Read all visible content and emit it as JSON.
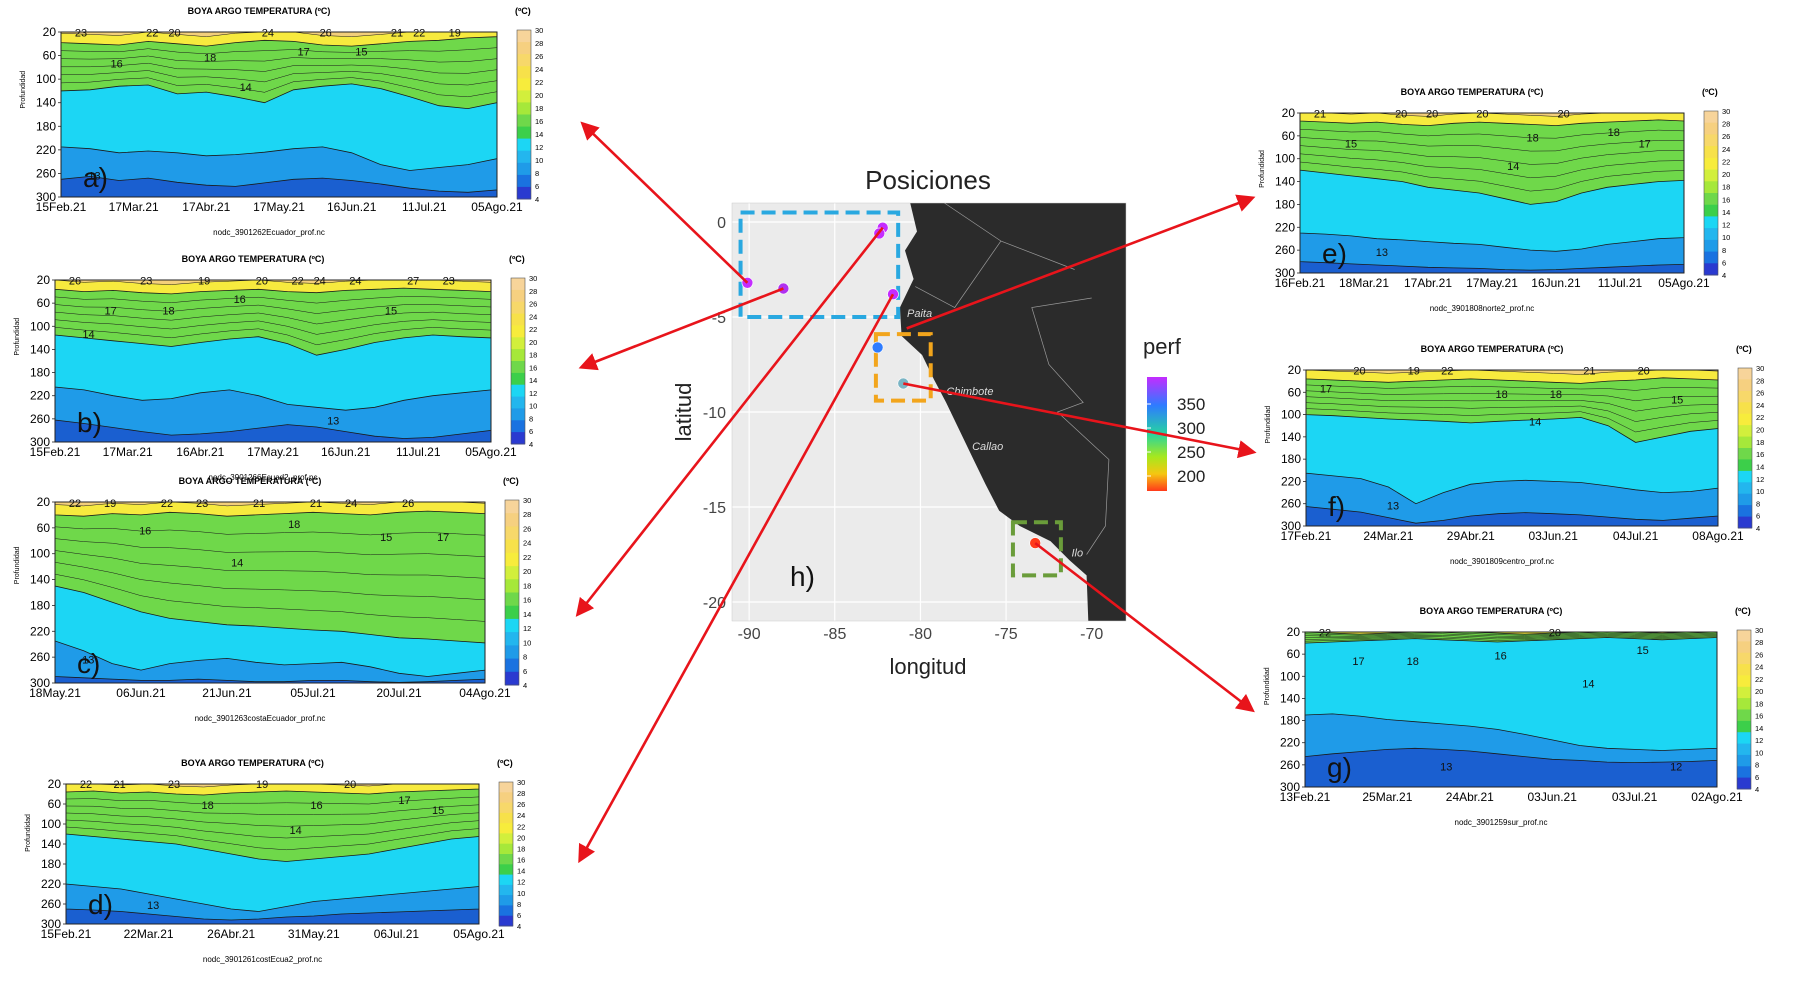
{
  "panels": [
    {
      "id": "a",
      "letter": "a)",
      "title": "BOYA ARGO TEMPERATURA (ºC)",
      "unit": "(ºC)",
      "ylabel": "Profundidad",
      "yticks": [
        "20",
        "60",
        "100",
        "140",
        "180",
        "220",
        "260",
        "300"
      ],
      "xticks": [
        "15Feb.21",
        "17Mar.21",
        "17Abr.21",
        "17May.21",
        "16Jun.21",
        "11Jul.21",
        "05Ago.21"
      ],
      "filename": "nodc_3901262Ecuador_prof.nc",
      "contour_labels": [
        "23",
        "26",
        "20",
        "22",
        "24",
        "16",
        "15",
        "18",
        "19",
        "17",
        "22",
        "21",
        "14",
        "13"
      ],
      "profile": {
        "warm": [
          38,
          40,
          42,
          36,
          40,
          44,
          38,
          34,
          36,
          42,
          44,
          40,
          36,
          34,
          30,
          28
        ],
        "green": [
          120,
          118,
          112,
          110,
          125,
          122,
          130,
          140,
          118,
          112,
          108,
          116,
          130,
          145,
          150,
          140
        ],
        "cyan": [
          215,
          218,
          225,
          222,
          225,
          230,
          228,
          224,
          218,
          215,
          225,
          245,
          255,
          250,
          245,
          235
        ],
        "blue": [
          270,
          265,
          272,
          268,
          275,
          280,
          282,
          276,
          270,
          268,
          272,
          278,
          285,
          290,
          292,
          288
        ]
      }
    },
    {
      "id": "b",
      "letter": "b)",
      "title": "BOYA ARGO TEMPERATURA (ºC)",
      "unit": "(ºC)",
      "ylabel": "Profundidad",
      "yticks": [
        "20",
        "60",
        "100",
        "140",
        "180",
        "220",
        "260",
        "300"
      ],
      "xticks": [
        "15Feb.21",
        "17Mar.21",
        "16Abr.21",
        "17May.21",
        "16Jun.21",
        "11Jul.21",
        "05Ago.21"
      ],
      "filename": "nodc_3901266Ecuad2_prof.nc",
      "contour_labels": [
        "26",
        "24",
        "18",
        "27",
        "20",
        "17",
        "24",
        "19",
        "23",
        "22",
        "23",
        "15",
        "16",
        "14",
        "13"
      ],
      "profile": {
        "warm": [
          36,
          40,
          38,
          42,
          44,
          40,
          38,
          36,
          40,
          42,
          38,
          36,
          34,
          36,
          38,
          40
        ],
        "green": [
          115,
          120,
          125,
          130,
          135,
          128,
          122,
          118,
          130,
          150,
          140,
          128,
          120,
          115,
          118,
          120
        ],
        "cyan": [
          205,
          210,
          220,
          228,
          225,
          215,
          210,
          220,
          235,
          240,
          245,
          240,
          228,
          220,
          215,
          210
        ],
        "blue": [
          262,
          268,
          275,
          282,
          288,
          286,
          282,
          276,
          270,
          274,
          282,
          290,
          294,
          292,
          286,
          280
        ]
      }
    },
    {
      "id": "c",
      "letter": "c)",
      "title": "BOYA ARGO TEMPERATURA (ºC)",
      "unit": "(ºC)",
      "ylabel": "Profundidad",
      "yticks": [
        "20",
        "60",
        "100",
        "140",
        "180",
        "220",
        "260",
        "300"
      ],
      "xticks": [
        "18May.21",
        "06Jun.21",
        "21Jun.21",
        "05Jul.21",
        "20Jul.21",
        "04Ago.21"
      ],
      "filename": "nodc_3901263costaEcuador_prof.nc",
      "contour_labels": [
        "22",
        "21",
        "22",
        "26",
        "21",
        "19",
        "24",
        "23",
        "17",
        "18",
        "16",
        "15",
        "14",
        "13"
      ],
      "profile": {
        "warm": [
          40,
          42,
          38,
          40,
          36,
          38,
          42,
          40,
          38,
          36,
          38,
          40,
          36,
          34,
          36,
          38
        ],
        "green": [
          150,
          160,
          175,
          190,
          200,
          205,
          210,
          212,
          215,
          218,
          220,
          225,
          230,
          232,
          235,
          238
        ],
        "cyan": [
          235,
          250,
          270,
          280,
          270,
          265,
          262,
          268,
          272,
          270,
          268,
          275,
          285,
          290,
          285,
          280
        ],
        "blue": [
          290,
          292,
          294,
          296,
          296,
          294,
          296,
          298,
          298,
          296,
          296,
          298,
          299,
          298,
          296,
          294
        ]
      }
    },
    {
      "id": "d",
      "letter": "d)",
      "title": "BOYA ARGO TEMPERATURA (ºC)",
      "unit": "(ºC)",
      "ylabel": "Profundidad",
      "yticks": [
        "20",
        "60",
        "100",
        "140",
        "180",
        "220",
        "260",
        "300"
      ],
      "xticks": [
        "15Feb.21",
        "22Mar.21",
        "26Abr.21",
        "31May.21",
        "06Jul.21",
        "05Ago.21"
      ],
      "filename": "nodc_3901261costEcua2_prof.nc",
      "contour_labels": [
        "22",
        "16",
        "23",
        "17",
        "19",
        "21",
        "20",
        "18",
        "15",
        "14",
        "13"
      ],
      "profile": {
        "warm": [
          36,
          34,
          38,
          36,
          40,
          42,
          38,
          36,
          34,
          36,
          38,
          40,
          36,
          34,
          32,
          30
        ],
        "green": [
          120,
          125,
          130,
          135,
          140,
          150,
          160,
          170,
          175,
          170,
          165,
          160,
          150,
          140,
          130,
          125
        ],
        "cyan": [
          220,
          225,
          230,
          240,
          250,
          260,
          270,
          275,
          265,
          255,
          250,
          245,
          240,
          235,
          230,
          225
        ],
        "blue": [
          270,
          272,
          275,
          280,
          285,
          290,
          292,
          290,
          286,
          284,
          280,
          278,
          276,
          274,
          272,
          270
        ]
      }
    },
    {
      "id": "e",
      "letter": "e)",
      "title": "BOYA ARGO TEMPERATURA (ºC)",
      "unit": "(ºC)",
      "ylabel": "Profundidad",
      "yticks": [
        "20",
        "60",
        "100",
        "140",
        "180",
        "220",
        "260",
        "300"
      ],
      "xticks": [
        "16Feb.21",
        "18Mar.21",
        "17Abr.21",
        "17May.21",
        "16Jun.21",
        "11Jul.21",
        "05Ago.21"
      ],
      "filename": "nodc_3901808norte2_prof.nc",
      "contour_labels": [
        "21",
        "18",
        "20",
        "18",
        "20",
        "15",
        "20",
        "20",
        "17",
        "14",
        "13"
      ],
      "profile": {
        "warm": [
          34,
          36,
          38,
          36,
          40,
          42,
          38,
          36,
          38,
          40,
          42,
          38,
          36,
          34,
          32,
          34
        ],
        "green": [
          120,
          125,
          130,
          135,
          140,
          150,
          155,
          160,
          170,
          180,
          175,
          160,
          150,
          145,
          140,
          138
        ],
        "cyan": [
          230,
          232,
          235,
          240,
          242,
          245,
          248,
          250,
          255,
          260,
          262,
          258,
          250,
          245,
          240,
          238
        ],
        "blue": [
          280,
          282,
          284,
          286,
          288,
          290,
          291,
          292,
          294,
          295,
          294,
          292,
          290,
          288,
          286,
          285
        ]
      }
    },
    {
      "id": "f",
      "letter": "f)",
      "title": "BOYA ARGO TEMPERATURA (ºC)",
      "unit": "(ºC)",
      "ylabel": "Profundidad",
      "yticks": [
        "20",
        "60",
        "100",
        "140",
        "180",
        "220",
        "260",
        "300"
      ],
      "xticks": [
        "17Feb.21",
        "24Mar.21",
        "29Abr.21",
        "03Jun.21",
        "04Jul.21",
        "08Ago.21"
      ],
      "filename": "nodc_3901809centro_prof.nc",
      "contour_labels": [
        "17",
        "18",
        "19",
        "20",
        "18",
        "20",
        "21",
        "22",
        "15",
        "14",
        "13"
      ],
      "profile": {
        "warm": [
          36,
          38,
          40,
          42,
          40,
          38,
          36,
          38,
          40,
          42,
          44,
          40,
          38,
          34,
          36,
          38
        ],
        "green": [
          100,
          102,
          105,
          108,
          110,
          112,
          115,
          112,
          110,
          108,
          105,
          120,
          150,
          140,
          130,
          125
        ],
        "cyan": [
          205,
          210,
          215,
          230,
          260,
          240,
          225,
          220,
          218,
          220,
          222,
          228,
          235,
          240,
          238,
          232
        ],
        "blue": [
          265,
          270,
          275,
          285,
          295,
          290,
          282,
          278,
          276,
          278,
          280,
          284,
          288,
          290,
          286,
          282
        ]
      }
    },
    {
      "id": "g",
      "letter": "g)",
      "title": "BOYA ARGO TEMPERATURA (ºC)",
      "unit": "(ºC)",
      "ylabel": "Profundidad",
      "yticks": [
        "20",
        "60",
        "100",
        "140",
        "180",
        "220",
        "260",
        "300"
      ],
      "xticks": [
        "13Feb.21",
        "25Mar.21",
        "24Abr.21",
        "03Jun.21",
        "03Jul.21",
        "02Ago.21"
      ],
      "filename": "nodc_3901259sur_prof.nc",
      "contour_labels": [
        "22",
        "20",
        "18",
        "15",
        "16",
        "17",
        "14",
        "13",
        "12"
      ],
      "profile": {
        "warm": [
          20,
          22,
          24,
          22,
          20,
          18,
          20,
          22,
          24,
          22,
          20,
          18,
          20,
          22,
          20,
          18
        ],
        "green": [
          40,
          38,
          36,
          34,
          32,
          34,
          36,
          38,
          36,
          34,
          32,
          30,
          32,
          34,
          32,
          30
        ],
        "cyan": [
          170,
          168,
          172,
          178,
          182,
          186,
          190,
          196,
          205,
          215,
          225,
          230,
          232,
          234,
          232,
          230
        ],
        "blue": [
          245,
          240,
          236,
          232,
          230,
          232,
          235,
          240,
          245,
          250,
          252,
          255,
          256,
          255,
          254,
          252
        ]
      }
    }
  ],
  "colorbar": {
    "ticks": [
      "30",
      "28",
      "26",
      "24",
      "22",
      "20",
      "18",
      "16",
      "14",
      "12",
      "10",
      "8",
      "6",
      "4"
    ]
  },
  "map": {
    "title": "Posiciones",
    "xlabel": "longitud",
    "ylabel": "latitud",
    "xticks": [
      "-90",
      "-85",
      "-80",
      "-75",
      "-70"
    ],
    "yticks": [
      "0",
      "-5",
      "-10",
      "-15",
      "-20"
    ],
    "letter": "h)",
    "legend_title": "perf",
    "legend_ticks": [
      "350",
      "300",
      "250",
      "200"
    ],
    "cities": [
      "Paita",
      "Chimbote",
      "Callao",
      "Ilo"
    ],
    "colors": {
      "land": "#2b2b2b",
      "sea": "#ebebeb",
      "box_north": "#29a8e0",
      "box_center": "#f2a51c",
      "box_south": "#6a9c3a",
      "arrow": "#e8141b"
    }
  }
}
